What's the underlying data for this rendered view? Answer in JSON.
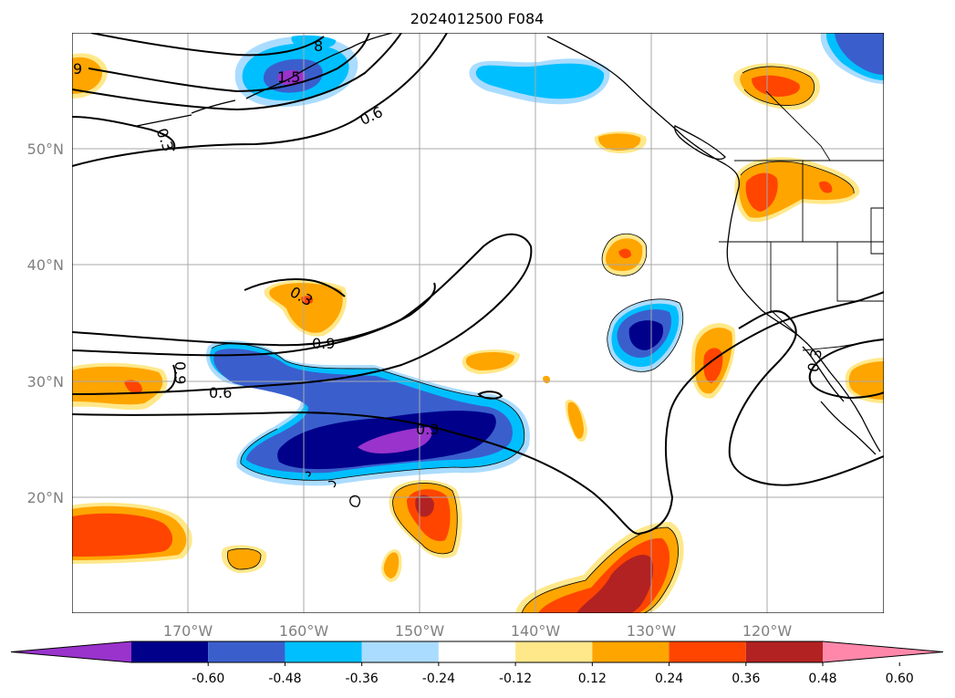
{
  "title": "2024012500 F084",
  "map": {
    "lon_range": [
      -180,
      -110
    ],
    "lat_range": [
      10,
      60
    ],
    "gridlines": true,
    "lat_labels": [
      "50°N",
      "40°N",
      "30°N",
      "20°N"
    ],
    "lon_labels": [
      "170°W",
      "160°W",
      "150°W",
      "140°W",
      "130°W",
      "120°W"
    ],
    "contour_labels": [
      "9",
      "1.5",
      "8",
      "0.6",
      "0.3",
      "0.3",
      "0.9",
      "0.9",
      "0.6",
      "0.3",
      "0.3"
    ],
    "fill_palette": {
      "purple": "#9933cc",
      "navy": "#00008b",
      "royal": "#3a5fcd",
      "cyan": "#00bfff",
      "lightblue": "#aadcff",
      "yellow": "#ffe88a",
      "orange": "#ffa500",
      "redorange": "#ff4500",
      "darkred": "#b22222",
      "pink": "#ff88aa"
    }
  },
  "colorbar": {
    "extend": "both",
    "tick_labels": [
      "-0.60",
      "-0.48",
      "-0.36",
      "-0.24",
      "-0.12",
      "0.12",
      "0.24",
      "0.36",
      "0.48",
      "0.60"
    ],
    "colors": [
      "#9933cc",
      "#00008b",
      "#3a5fcd",
      "#00bfff",
      "#aadcff",
      "#ffffff",
      "#ffe88a",
      "#ffa500",
      "#ff4500",
      "#b22222",
      "#ff88aa"
    ]
  }
}
